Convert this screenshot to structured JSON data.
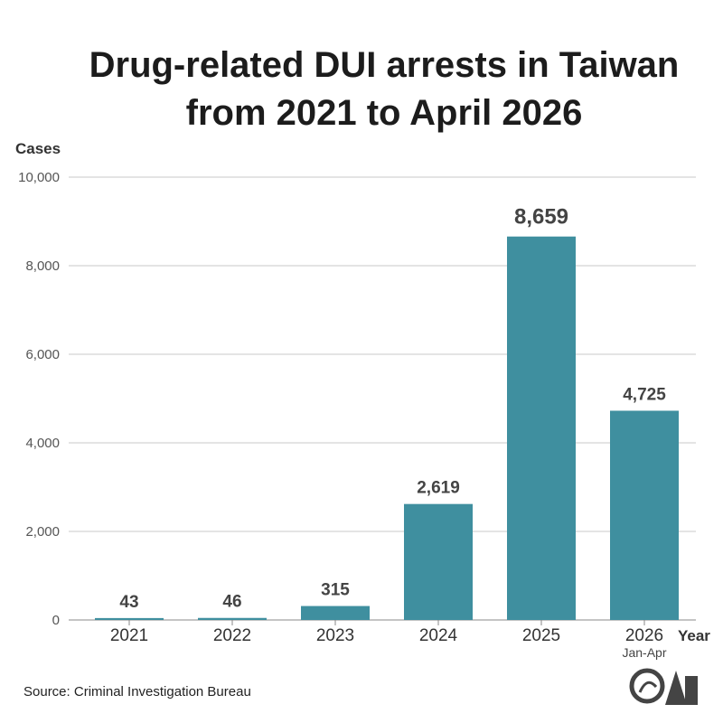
{
  "chart_data": {
    "type": "bar",
    "title_lines": [
      "Drug-related DUI arrests in Taiwan",
      "from 2021 to April 2026"
    ],
    "ylabel": "Cases",
    "xlabel": "Year",
    "ylim": [
      0,
      10000
    ],
    "yticks": [
      0,
      2000,
      4000,
      6000,
      8000,
      10000
    ],
    "ytick_labels": [
      "0",
      "2,000",
      "4,000",
      "6,000",
      "8,000",
      "10,000"
    ],
    "grid": true,
    "categories": [
      "2021",
      "2022",
      "2023",
      "2024",
      "2025",
      "2026"
    ],
    "category_notes": [
      "",
      "",
      "",
      "",
      "",
      "Jan-Apr"
    ],
    "values": [
      43,
      46,
      315,
      2619,
      8659,
      4725
    ],
    "value_labels": [
      "43",
      "46",
      "315",
      "2,619",
      "8,659",
      "4,725"
    ],
    "highlight_index": 4,
    "bar_color": "#3f8f9f",
    "highlight_label_color": "#e0505a",
    "grid_color": "#c8c8c8",
    "axis_color": "#888888"
  },
  "source": "Source: Criminal Investigation Bureau",
  "logo": {
    "text": "CNA",
    "icon": "cna-logo-icon"
  }
}
